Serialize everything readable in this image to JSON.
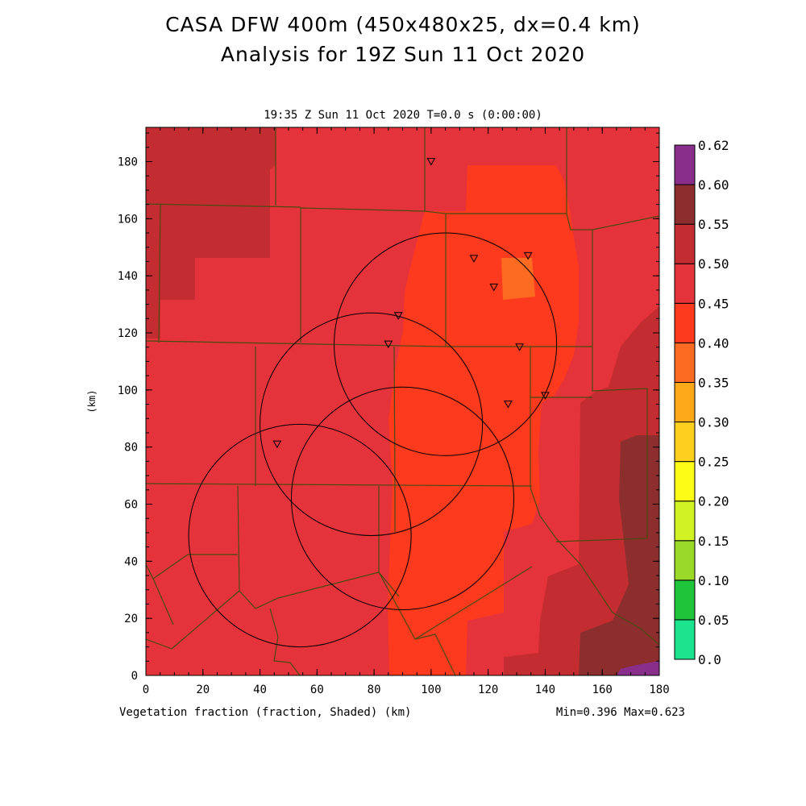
{
  "title_line1": "CASA DFW 400m (450x480x25, dx=0.4 km)",
  "title_line2": "Analysis for 19Z Sun 11 Oct 2020",
  "subtitle": "19:35 Z Sun 11 Oct 2020   T=0.0 s (0:00:00)",
  "footer_left": "Vegetation fraction (fraction, Shaded)  (km)",
  "footer_right": "Min=0.396 Max=0.623",
  "chart_data": {
    "type": "heatmap",
    "title": "CASA DFW 400m (450x480x25, dx=0.4 km)",
    "xlabel": "(km)",
    "ylabel": "(km)",
    "xlim": [
      0,
      180
    ],
    "ylim": [
      0,
      192
    ],
    "x_ticks": [
      "0",
      "20",
      "40",
      "60",
      "80",
      "100",
      "120",
      "140",
      "160",
      "180"
    ],
    "y_ticks": [
      "0",
      "20",
      "40",
      "60",
      "80",
      "100",
      "120",
      "140",
      "160",
      "180"
    ],
    "colorbar": {
      "labels": [
        "0.0",
        "0.05",
        "0.10",
        "0.15",
        "0.20",
        "0.25",
        "0.30",
        "0.35",
        "0.40",
        "0.45",
        "0.50",
        "0.55",
        "0.60",
        "0.62"
      ],
      "colors": [
        "#1be38e",
        "#1fc43b",
        "#9ad927",
        "#d1f323",
        "#fcfc17",
        "#fdd01f",
        "#fda819",
        "#fd6b23",
        "#fd3a1e",
        "#e4333a",
        "#c32d31",
        "#8c2e2e",
        "#8a2e8c"
      ]
    },
    "radar_range_rings": [
      {
        "center_km": [
          105,
          116
        ],
        "radius_km": 39
      },
      {
        "center_km": [
          79,
          88
        ],
        "radius_km": 39
      },
      {
        "center_km": [
          54,
          49
        ],
        "radius_km": 39
      },
      {
        "center_km": [
          90,
          62
        ],
        "radius_km": 39
      }
    ],
    "station_markers_km": [
      [
        100,
        180
      ],
      [
        115,
        146
      ],
      [
        134,
        147
      ],
      [
        122,
        136
      ],
      [
        88.5,
        126
      ],
      [
        85,
        116
      ],
      [
        131,
        115
      ],
      [
        140,
        98
      ],
      [
        127,
        95
      ],
      [
        46,
        81
      ]
    ],
    "min": 0.396,
    "max": 0.623
  }
}
